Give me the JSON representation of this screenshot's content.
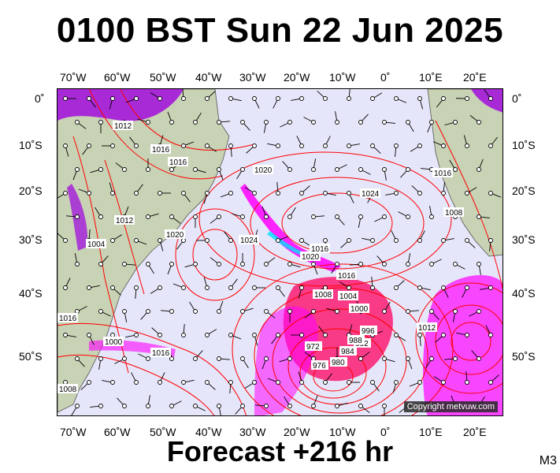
{
  "title": "0100 BST Sun 22 Jun 2025",
  "footer": "Forecast +216 hr",
  "model": "M3",
  "copyright": "Copyright metvuw.com",
  "lon_ticks": [
    "70˚W",
    "60˚W",
    "50˚W",
    "40˚W",
    "30˚W",
    "20˚W",
    "10˚W",
    "0˚",
    "10˚E",
    "20˚E"
  ],
  "lat_ticks": [
    "0˚",
    "10˚S",
    "20˚S",
    "30˚S",
    "40˚S",
    "50˚S"
  ],
  "isobar_labels": [
    "1012",
    "1016",
    "1016",
    "1020",
    "1024",
    "1024",
    "1016",
    "1020",
    "1016",
    "1016",
    "1008",
    "1004",
    "1000",
    "996",
    "992",
    "972",
    "976",
    "980",
    "984",
    "988",
    "1012",
    "1016",
    "1008",
    "1012",
    "1004",
    "1000",
    "1020",
    "1016",
    "1008"
  ],
  "colors": {
    "sea": "#e6e6fa",
    "land": "#c8d2b4",
    "isobar": "#ff0000",
    "rain_magenta": "#ff00ff",
    "rain_purple": "#a000e0",
    "rain_red": "#ff0060",
    "rain_cyan": "#00e0ff"
  }
}
